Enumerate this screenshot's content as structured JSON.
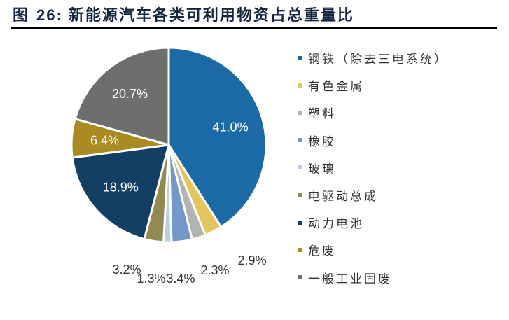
{
  "title": {
    "prefix": "图",
    "number": "26:",
    "text": "新能源汽车各类可利用物资占总重量比"
  },
  "chart_data": {
    "type": "pie",
    "title": "新能源汽车各类可利用物资占总重量比",
    "start": "12 o'clock, clockwise",
    "legend_placement": "right",
    "slices": [
      {
        "label": "钢铁（除去三电系统）",
        "value": 41.0,
        "text": "41.0%",
        "color": "#1B6AA5"
      },
      {
        "label": "有色金属",
        "value": 2.9,
        "text": "2.9%",
        "color": "#E5C55F"
      },
      {
        "label": "塑料",
        "value": 2.3,
        "text": "2.3%",
        "color": "#B3B3B3"
      },
      {
        "label": "橡胶",
        "value": 3.4,
        "text": "3.4%",
        "color": "#7398C9"
      },
      {
        "label": "玻璃",
        "value": 1.3,
        "text": "1.3%",
        "color": "#B9CDE5"
      },
      {
        "label": "电驱动总成",
        "value": 3.2,
        "text": "3.2%",
        "color": "#918B52"
      },
      {
        "label": "动力电池",
        "value": 18.9,
        "text": "18.9%",
        "color": "#123F63"
      },
      {
        "label": "危废",
        "value": 6.4,
        "text": "6.4%",
        "color": "#A98B21"
      },
      {
        "label": "一般工业固废",
        "value": 20.7,
        "text": "20.7%",
        "color": "#6E6E6E"
      }
    ]
  }
}
